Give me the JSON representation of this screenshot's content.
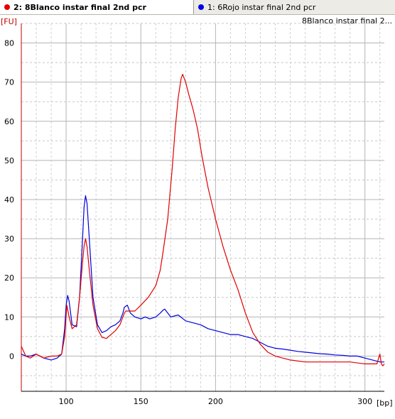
{
  "tabs": [
    {
      "label": "2: 8Blanco instar final 2nd pcr",
      "color": "#e00000",
      "active": true
    },
    {
      "label": "1: 6Rojo instar final 2nd pcr",
      "color": "#0000e0",
      "active": false
    }
  ],
  "chart_data": {
    "type": "line",
    "title": "8Blanco instar final 2...",
    "ylabel": "[FU]",
    "xlabel": "[bp]",
    "xlim": [
      70,
      313
    ],
    "ylim": [
      -9,
      85
    ],
    "x_ticks": [
      100,
      150,
      200,
      300
    ],
    "y_ticks": [
      0,
      10,
      20,
      30,
      40,
      50,
      60,
      70,
      80
    ],
    "grid": true,
    "series": [
      {
        "name": "2: 8Blanco instar final 2nd pcr",
        "color": "#e00000",
        "x": [
          70,
          73,
          76,
          80,
          85,
          90,
          94,
          97,
          99,
          100.5,
          102,
          104,
          107,
          109,
          111,
          112,
          113,
          114,
          115.5,
          118,
          121,
          124,
          127,
          130,
          133,
          136,
          139,
          140,
          142,
          146,
          150,
          155,
          160,
          163,
          165,
          168,
          171,
          173,
          175,
          177,
          178,
          180,
          182,
          185,
          188,
          191,
          195,
          200,
          205,
          210,
          215,
          220,
          225,
          230,
          235,
          240,
          245,
          250,
          260,
          270,
          280,
          290,
          300,
          305,
          308,
          310,
          311,
          312,
          313
        ],
        "y": [
          2.5,
          0,
          -0.5,
          0.5,
          -0.5,
          0,
          0,
          0.5,
          5,
          13,
          10,
          7,
          8,
          15,
          24,
          28,
          30,
          28,
          22,
          13,
          7,
          4.8,
          4.5,
          5.5,
          6.5,
          8,
          11,
          11.5,
          11.5,
          11.5,
          13,
          15,
          18,
          22,
          27,
          35,
          48,
          58,
          66,
          71,
          72,
          70,
          67,
          63,
          58,
          51,
          43,
          35,
          28,
          22,
          17,
          11,
          6,
          3,
          1,
          0,
          -0.5,
          -1,
          -1.5,
          -1.5,
          -1.5,
          -1.5,
          -2,
          -2,
          -2,
          0.5,
          -2,
          -2.5,
          -2
        ],
        "peaks": [
          {
            "x": 100.5,
            "y": 13
          },
          {
            "x": 113,
            "y": 30
          },
          {
            "x": 140,
            "y": 11.5
          },
          {
            "x": 177.5,
            "y": 72
          }
        ]
      },
      {
        "name": "1: 6Rojo instar final 2nd pcr",
        "color": "#0000e0",
        "x": [
          70,
          73,
          76,
          80,
          85,
          90,
          94,
          97,
          99,
          100,
          101,
          102,
          104,
          107,
          109,
          111,
          112,
          113,
          114,
          115.5,
          118,
          121,
          124,
          127,
          130,
          133,
          136,
          138,
          139,
          141,
          143,
          146,
          150,
          153,
          156,
          160,
          163,
          165,
          166,
          168,
          170,
          175,
          180,
          185,
          190,
          195,
          200,
          205,
          210,
          215,
          220,
          225,
          230,
          235,
          240,
          245,
          250,
          255,
          260,
          265,
          270,
          275,
          280,
          285,
          290,
          295,
          300,
          305,
          310,
          313
        ],
        "y": [
          0.5,
          0,
          0,
          0.5,
          -0.5,
          -1,
          -0.5,
          0.5,
          7,
          13,
          15.5,
          14,
          8,
          7.5,
          15,
          30,
          38,
          41,
          39,
          30,
          15,
          8,
          6,
          6.5,
          7.5,
          8,
          9,
          11,
          12.5,
          13,
          11,
          10,
          9.5,
          10,
          9.5,
          10,
          11,
          11.8,
          12,
          11,
          10,
          10.5,
          9,
          8.5,
          8,
          7,
          6.5,
          6,
          5.5,
          5.5,
          5,
          4.5,
          3.5,
          2.5,
          2,
          1.8,
          1.5,
          1.2,
          1,
          0.8,
          0.6,
          0.5,
          0.3,
          0.2,
          0,
          0,
          -0.5,
          -1,
          -1.5,
          -1.5
        ],
        "peaks": [
          {
            "x": 101,
            "y": 15.5
          },
          {
            "x": 113,
            "y": 41
          },
          {
            "x": 139,
            "y": 12.5
          },
          {
            "x": 166,
            "y": 12
          }
        ]
      }
    ]
  }
}
